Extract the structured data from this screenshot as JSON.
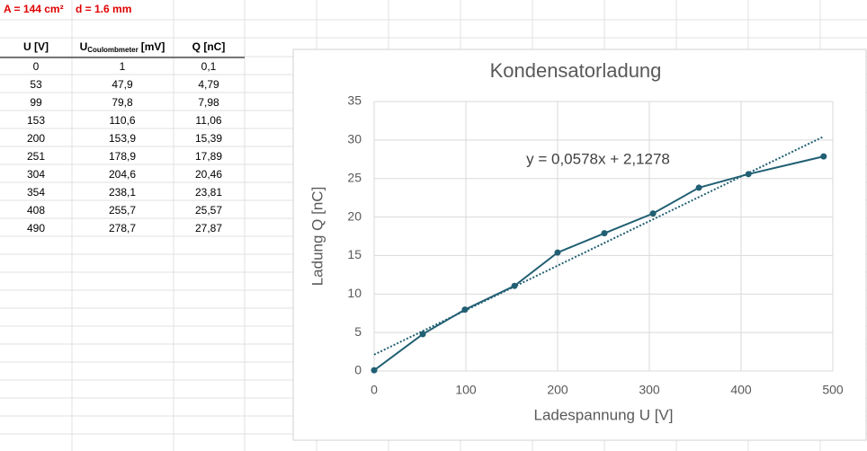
{
  "sheet": {
    "header_cells": [
      "A = 144 cm²",
      "d = 1.6 mm"
    ],
    "table": {
      "columns": [
        "U [V]",
        {
          "main": "U",
          "sub": "Coulombmeter",
          "unit": "[mV]"
        },
        "Q [nC]"
      ],
      "rows": [
        [
          "0",
          "1",
          "0,1"
        ],
        [
          "53",
          "47,9",
          "4,79"
        ],
        [
          "99",
          "79,8",
          "7,98"
        ],
        [
          "153",
          "110,6",
          "11,06"
        ],
        [
          "200",
          "153,9",
          "15,39"
        ],
        [
          "251",
          "178,9",
          "17,89"
        ],
        [
          "304",
          "204,6",
          "20,46"
        ],
        [
          "354",
          "238,1",
          "23,81"
        ],
        [
          "408",
          "255,7",
          "25,57"
        ],
        [
          "490",
          "278,7",
          "27,87"
        ]
      ]
    }
  },
  "chart_data": {
    "type": "line",
    "title": "Kondensatorladung",
    "x_label": "Ladespannung U [V]",
    "y_label": "Ladung Q [nC]",
    "x": [
      0,
      53,
      99,
      153,
      200,
      251,
      304,
      354,
      408,
      490
    ],
    "values": [
      0.1,
      4.79,
      7.98,
      11.06,
      15.39,
      17.89,
      20.46,
      23.81,
      25.57,
      27.87
    ],
    "color": "#215f73",
    "markers": true,
    "xlim": [
      0,
      500
    ],
    "xticks": [
      0,
      100,
      200,
      300,
      400,
      500
    ],
    "ylim": [
      0,
      35
    ],
    "yticks": [
      0,
      5,
      10,
      15,
      20,
      25,
      30,
      35
    ],
    "grid": true,
    "trendline": {
      "slope": 0.0578,
      "intercept": 2.1278,
      "label": "y = 0,0578x + 2,1278",
      "color": "#215f73",
      "style": "dotted"
    }
  }
}
